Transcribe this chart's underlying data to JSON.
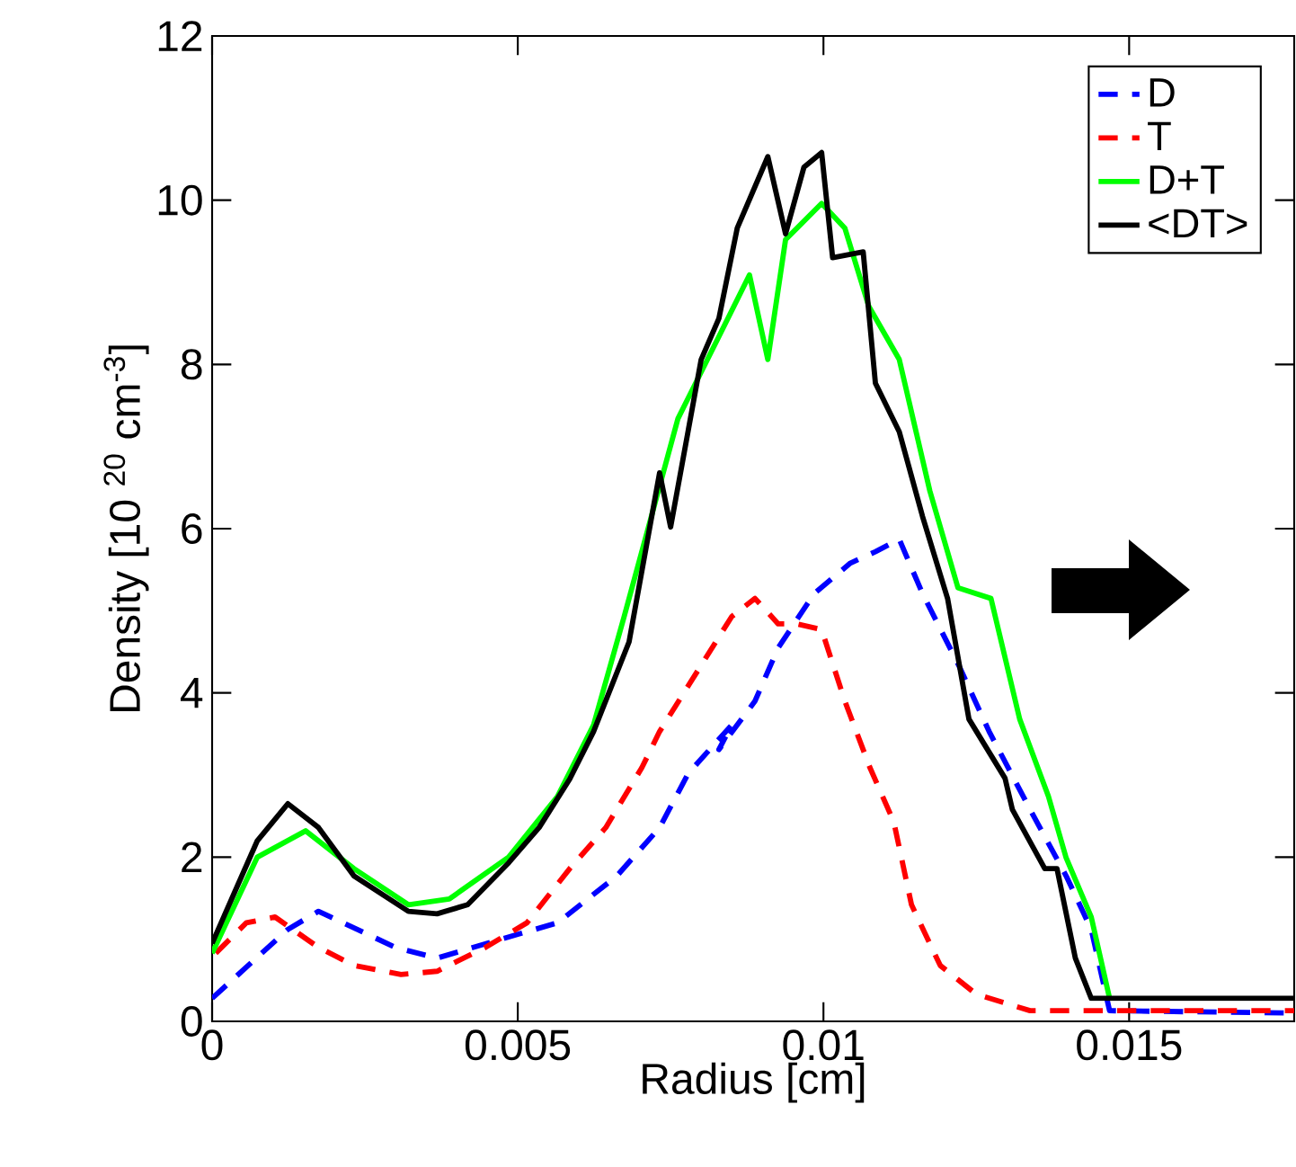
{
  "chart_data": {
    "type": "line",
    "xlabel": "Radius [cm]",
    "ylabel": "Density [10 $^{20}$ cm$^{-3}$]",
    "xlim": [
      0,
      0.0177
    ],
    "ylim": [
      0,
      12
    ],
    "xticks": [
      0,
      0.005,
      0.01,
      0.015
    ],
    "yticks": [
      0,
      2,
      4,
      6,
      8,
      10,
      12
    ],
    "legend": "top right",
    "grid": false,
    "series": [
      {
        "name": "D",
        "color": "#0000ff",
        "line_style": "dashed",
        "x": [
          0,
          0.00124,
          0.00174,
          0.003,
          0.00368,
          0.00468,
          0.00565,
          0.00662,
          0.00732,
          0.00779,
          0.0085,
          0.00829,
          0.00888,
          0.00926,
          0.00985,
          0.01044,
          0.01085,
          0.01124,
          0.01162,
          0.01221,
          0.01271,
          0.01338,
          0.01397,
          0.01438,
          0.01468,
          0.0177
        ],
        "values": [
          0.28,
          1.12,
          1.34,
          0.9,
          0.77,
          0.99,
          1.2,
          1.77,
          2.36,
          3.02,
          3.61,
          3.31,
          3.9,
          4.55,
          5.21,
          5.58,
          5.72,
          5.87,
          5.21,
          4.34,
          3.53,
          2.58,
          1.77,
          1.12,
          0.13,
          0.1
        ]
      },
      {
        "name": "T",
        "color": "#ff0000",
        "line_style": "dashed",
        "x": [
          6e-05,
          0.00056,
          0.00103,
          0.00174,
          0.00232,
          0.00309,
          0.00368,
          0.00447,
          0.00515,
          0.00585,
          0.00644,
          0.00703,
          0.00732,
          0.0085,
          0.00888,
          0.00926,
          0.00956,
          0.00997,
          0.01035,
          0.01076,
          0.01115,
          0.01144,
          0.01191,
          0.0125,
          0.01338,
          0.0177
        ],
        "values": [
          0.83,
          1.2,
          1.27,
          0.9,
          0.68,
          0.57,
          0.61,
          0.9,
          1.2,
          1.86,
          2.36,
          3.09,
          3.53,
          4.93,
          5.15,
          4.84,
          4.84,
          4.77,
          3.9,
          3.09,
          2.43,
          1.42,
          0.68,
          0.33,
          0.13,
          0.13
        ]
      },
      {
        "name": "D+T",
        "color": "#00ff00",
        "line_style": "solid",
        "x": [
          0,
          0.00074,
          0.00153,
          0.00232,
          0.00321,
          0.00388,
          0.00485,
          0.00565,
          0.00624,
          0.00674,
          0.00762,
          0.00829,
          0.00879,
          0.00909,
          0.00938,
          0.00997,
          0.01035,
          0.01074,
          0.01124,
          0.01174,
          0.0122,
          0.01274,
          0.01321,
          0.01368,
          0.01397,
          0.01438,
          0.01468
        ],
        "values": [
          0.83,
          2.0,
          2.32,
          1.86,
          1.42,
          1.49,
          2.0,
          2.74,
          3.61,
          4.93,
          7.34,
          8.34,
          9.09,
          8.06,
          9.52,
          9.96,
          9.66,
          8.71,
          8.06,
          6.46,
          5.28,
          5.15,
          3.68,
          2.74,
          1.99,
          1.27,
          0.28
        ]
      },
      {
        "name": "<DT>",
        "color": "#000000",
        "line_style": "solid",
        "x": [
          0,
          0.00074,
          0.00124,
          0.00174,
          0.00232,
          0.00321,
          0.00368,
          0.00418,
          0.00485,
          0.00535,
          0.00585,
          0.00624,
          0.00682,
          0.00732,
          0.0075,
          0.008,
          0.00829,
          0.00859,
          0.00909,
          0.00938,
          0.00968,
          0.00997,
          0.01015,
          0.01065,
          0.01085,
          0.01124,
          0.01162,
          0.01203,
          0.01238,
          0.01297,
          0.01309,
          0.01362,
          0.01382,
          0.01412,
          0.01438,
          0.0177
        ],
        "values": [
          0.95,
          2.2,
          2.65,
          2.36,
          1.77,
          1.34,
          1.31,
          1.42,
          1.93,
          2.36,
          2.95,
          3.53,
          4.62,
          6.68,
          6.02,
          8.06,
          8.56,
          9.66,
          10.53,
          9.59,
          10.4,
          10.58,
          9.3,
          9.37,
          7.77,
          7.18,
          6.15,
          5.15,
          3.68,
          2.96,
          2.58,
          1.86,
          1.86,
          0.77,
          0.28,
          0.28
        ]
      }
    ]
  }
}
